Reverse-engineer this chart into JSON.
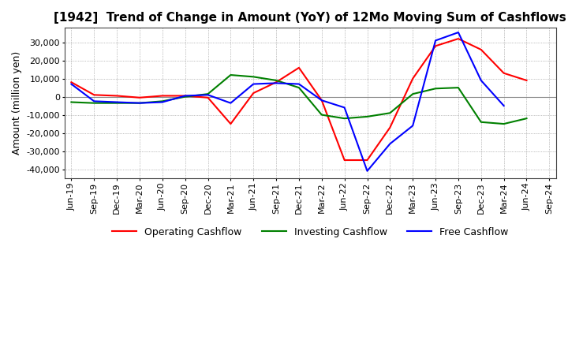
{
  "title": "[1942]  Trend of Change in Amount (YoY) of 12Mo Moving Sum of Cashflows",
  "ylabel": "Amount (million yen)",
  "x_labels": [
    "Jun-19",
    "Sep-19",
    "Dec-19",
    "Mar-20",
    "Jun-20",
    "Sep-20",
    "Dec-20",
    "Mar-21",
    "Jun-21",
    "Sep-21",
    "Dec-21",
    "Mar-22",
    "Jun-22",
    "Sep-22",
    "Dec-22",
    "Mar-23",
    "Jun-23",
    "Sep-23",
    "Dec-23",
    "Mar-24",
    "Jun-24",
    "Sep-24"
  ],
  "operating": [
    8000,
    1000,
    500,
    -500,
    500,
    500,
    -500,
    -15000,
    2000,
    8000,
    16000,
    -2000,
    -35000,
    -35000,
    -17000,
    10000,
    28000,
    32000,
    26000,
    13000,
    9000,
    null
  ],
  "investing": [
    -3000,
    -3500,
    -3500,
    -3500,
    -2500,
    0,
    1500,
    12000,
    11000,
    9000,
    5000,
    -10000,
    -12000,
    -11000,
    -9000,
    1500,
    4500,
    5000,
    -14000,
    -15000,
    -12000,
    null
  ],
  "free": [
    7000,
    -2500,
    -3000,
    -3500,
    -3000,
    500,
    1000,
    -3500,
    7000,
    7500,
    7000,
    -2000,
    -6000,
    -41000,
    -26000,
    -16000,
    31000,
    35500,
    9000,
    -5000,
    null,
    null
  ],
  "ylim": [
    -45000,
    38000
  ],
  "yticks": [
    -40000,
    -30000,
    -20000,
    -10000,
    0,
    10000,
    20000,
    30000
  ],
  "operating_color": "#ff0000",
  "investing_color": "#008000",
  "free_color": "#0000ff",
  "grid_color": "#888888",
  "zero_line_color": "#888888",
  "background_color": "#ffffff",
  "title_fontsize": 11,
  "axis_label_fontsize": 9,
  "tick_fontsize": 8,
  "legend_fontsize": 9,
  "line_width": 1.5
}
